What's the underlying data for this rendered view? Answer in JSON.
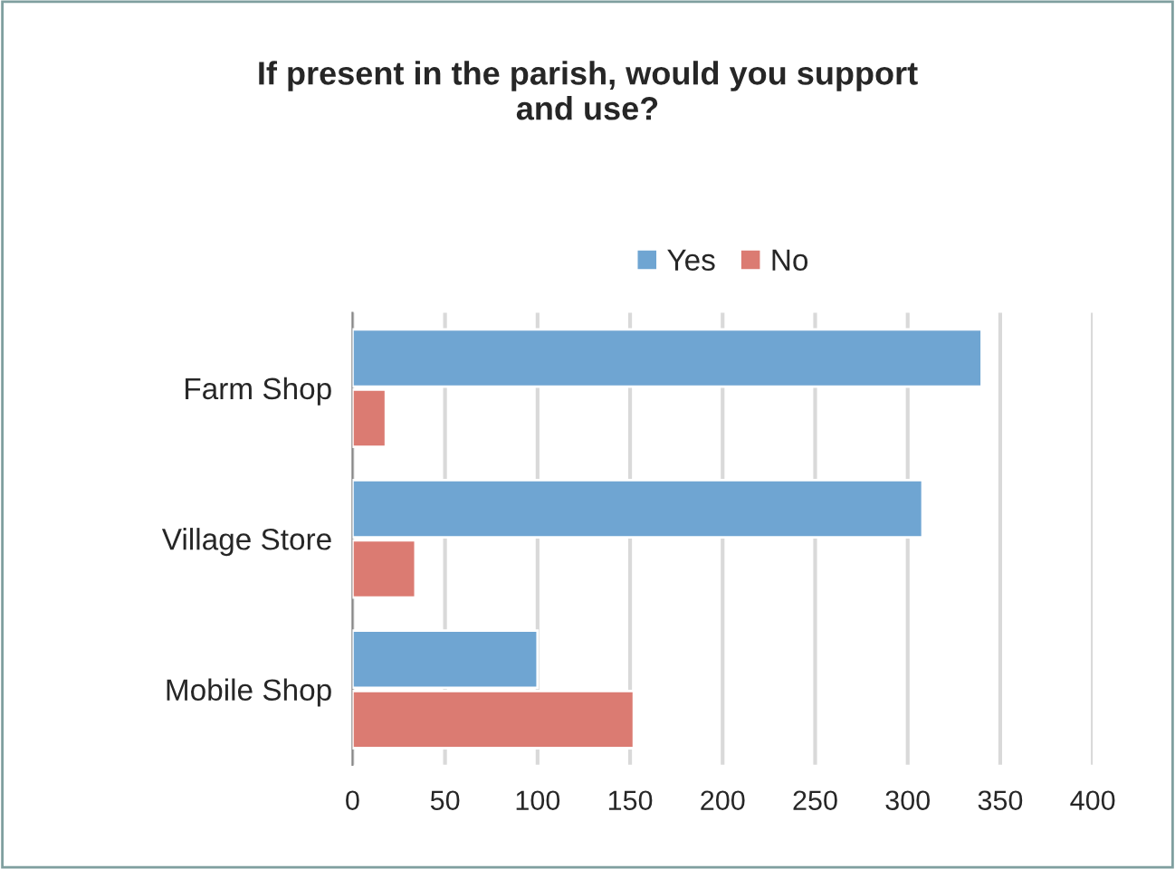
{
  "chart_data": {
    "type": "bar",
    "orientation": "horizontal",
    "title": "If present in the parish, would you support\nand use?",
    "categories": [
      "Farm Shop",
      "Village Store",
      "Mobile Shop"
    ],
    "series": [
      {
        "name": "Yes",
        "color": "#6fa5d2",
        "values": [
          340,
          308,
          100
        ]
      },
      {
        "name": "No",
        "color": "#db7b72",
        "values": [
          18,
          34,
          152
        ]
      }
    ],
    "xlim": [
      0,
      400
    ],
    "xticks": [
      0,
      50,
      100,
      150,
      200,
      250,
      300,
      350,
      400
    ],
    "grid": "x",
    "legend": "top"
  }
}
